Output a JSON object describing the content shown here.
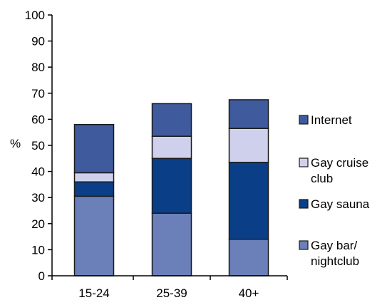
{
  "chart_data": {
    "type": "bar",
    "stacked": true,
    "categories": [
      "15-24",
      "25-39",
      "40+"
    ],
    "series": [
      {
        "name": "Gay bar/ nightclub",
        "name_lines": [
          "Gay bar/",
          "nightclub"
        ],
        "color": "#6b7fb8",
        "values": [
          30.5,
          24,
          14
        ]
      },
      {
        "name": "Gay sauna",
        "name_lines": [
          "Gay sauna"
        ],
        "color": "#0a3f87",
        "values": [
          5.5,
          21,
          29.5
        ]
      },
      {
        "name": "Gay cruise club",
        "name_lines": [
          "Gay cruise",
          "club"
        ],
        "color": "#cfd1ec",
        "values": [
          3.5,
          8.5,
          13
        ]
      },
      {
        "name": "Internet",
        "name_lines": [
          "Internet"
        ],
        "color": "#3f5b9e",
        "values": [
          18.5,
          12.5,
          11
        ]
      }
    ],
    "ylabel": "%",
    "ylim": [
      0,
      100
    ],
    "yticks": [
      0,
      10,
      20,
      30,
      40,
      50,
      60,
      70,
      80,
      90,
      100
    ],
    "grid": false,
    "legend": "right",
    "legend_order": [
      "Internet",
      "Gay cruise club",
      "Gay sauna",
      "Gay bar/ nightclub"
    ]
  }
}
